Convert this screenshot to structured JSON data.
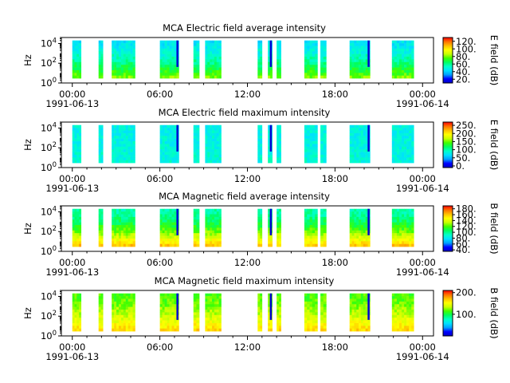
{
  "figure": {
    "background": "#ffffff",
    "colormap": [
      "#0000c8",
      "#0000ff",
      "#00a0ff",
      "#00e0ff",
      "#00ffc8",
      "#00ff60",
      "#40ff00",
      "#c8ff00",
      "#ffff00",
      "#ffc000",
      "#ff7000",
      "#ff0000"
    ]
  },
  "x_axis": {
    "range_hours": [
      -0.75,
      24.75
    ],
    "ticks": [
      {
        "t": 0,
        "label": "00:00",
        "date": "1991-06-13"
      },
      {
        "t": 6,
        "label": "06:00",
        "date": ""
      },
      {
        "t": 12,
        "label": "12:00",
        "date": ""
      },
      {
        "t": 18,
        "label": "18:00",
        "date": ""
      },
      {
        "t": 24,
        "label": "00:00",
        "date": "1991-06-14"
      }
    ],
    "minor_step_hours": 1
  },
  "chart_data": [
    {
      "type": "heatmap",
      "title": "MCA  Electric field average intensity",
      "ylabel": "Hz",
      "yscale": "log",
      "ylim": [
        1,
        40000
      ],
      "yticks": [
        {
          "v": 1,
          "base": "10",
          "exp": "0"
        },
        {
          "v": 100,
          "base": "10",
          "exp": "2"
        },
        {
          "v": 10000,
          "base": "10",
          "exp": "4"
        }
      ],
      "colorbar": {
        "label": "E field (dB)",
        "range": [
          10,
          130
        ],
        "ticks": [
          "20.",
          "40.",
          "60.",
          "80.",
          "100.",
          "120."
        ],
        "tick_values": [
          20,
          40,
          60,
          80,
          100,
          120
        ]
      },
      "data_segments_hours": [
        [
          0.0,
          0.6
        ],
        [
          1.8,
          2.1
        ],
        [
          2.7,
          4.3
        ],
        [
          6.0,
          7.3
        ],
        [
          8.3,
          8.7
        ],
        [
          9.1,
          10.2
        ],
        [
          12.7,
          13.0
        ],
        [
          13.4,
          13.7
        ],
        [
          14.0,
          14.3
        ],
        [
          15.9,
          16.8
        ],
        [
          17.0,
          17.4
        ],
        [
          19.0,
          20.4
        ],
        [
          21.9,
          23.4
        ]
      ],
      "intensity_low_freq": 80,
      "intensity_high_freq": 45
    },
    {
      "type": "heatmap",
      "title": "MCA  Electric field maximum intensity",
      "ylabel": "Hz",
      "yscale": "log",
      "ylim": [
        1,
        40000
      ],
      "yticks": [
        {
          "v": 1,
          "base": "10",
          "exp": "0"
        },
        {
          "v": 100,
          "base": "10",
          "exp": "2"
        },
        {
          "v": 10000,
          "base": "10",
          "exp": "4"
        }
      ],
      "colorbar": {
        "label": "E field (dB)",
        "range": [
          -10,
          270
        ],
        "ticks": [
          "0.",
          "50.",
          "100.",
          "150.",
          "200.",
          "250."
        ],
        "tick_values": [
          0,
          50,
          100,
          150,
          200,
          250
        ]
      },
      "data_segments_hours": [
        [
          0.0,
          0.6
        ],
        [
          1.8,
          2.1
        ],
        [
          2.7,
          4.3
        ],
        [
          6.0,
          7.3
        ],
        [
          8.3,
          8.7
        ],
        [
          9.1,
          10.2
        ],
        [
          12.7,
          13.0
        ],
        [
          13.4,
          13.7
        ],
        [
          14.0,
          14.3
        ],
        [
          15.9,
          16.8
        ],
        [
          17.0,
          17.4
        ],
        [
          19.0,
          20.4
        ],
        [
          21.9,
          23.4
        ]
      ],
      "intensity_low_freq": 85,
      "intensity_high_freq": 80
    },
    {
      "type": "heatmap",
      "title": "MCA  Magnetic field average intensity",
      "ylabel": "Hz",
      "yscale": "log",
      "ylim": [
        1,
        40000
      ],
      "yticks": [
        {
          "v": 1,
          "base": "10",
          "exp": "0"
        },
        {
          "v": 100,
          "base": "10",
          "exp": "2"
        },
        {
          "v": 10000,
          "base": "10",
          "exp": "4"
        }
      ],
      "colorbar": {
        "label": "B field (dB)",
        "range": [
          35,
          190
        ],
        "ticks": [
          "40.",
          "60.",
          "80.",
          "100.",
          "120.",
          "140.",
          "160.",
          "180."
        ],
        "tick_values": [
          40,
          60,
          80,
          100,
          120,
          140,
          160,
          180
        ]
      },
      "data_segments_hours": [
        [
          0.0,
          0.6
        ],
        [
          1.8,
          2.1
        ],
        [
          2.7,
          4.3
        ],
        [
          6.0,
          7.3
        ],
        [
          8.3,
          8.7
        ],
        [
          9.1,
          10.2
        ],
        [
          12.7,
          13.0
        ],
        [
          13.4,
          13.7
        ],
        [
          14.0,
          14.3
        ],
        [
          15.9,
          16.8
        ],
        [
          17.0,
          17.4
        ],
        [
          19.0,
          20.4
        ],
        [
          21.9,
          23.4
        ]
      ],
      "intensity_low_freq": 160,
      "intensity_high_freq": 95
    },
    {
      "type": "heatmap",
      "title": "MCA  Magnetic field maximum intensity",
      "ylabel": "Hz",
      "yscale": "log",
      "ylim": [
        1,
        40000
      ],
      "yticks": [
        {
          "v": 1,
          "base": "10",
          "exp": "0"
        },
        {
          "v": 100,
          "base": "10",
          "exp": "2"
        },
        {
          "v": 10000,
          "base": "10",
          "exp": "4"
        }
      ],
      "colorbar": {
        "label": "B field (dB)",
        "range": [
          0,
          210
        ],
        "ticks": [
          "100.",
          "200."
        ],
        "tick_values": [
          100,
          200
        ]
      },
      "data_segments_hours": [
        [
          0.0,
          0.6
        ],
        [
          1.8,
          2.1
        ],
        [
          2.7,
          4.3
        ],
        [
          6.0,
          7.3
        ],
        [
          8.3,
          8.7
        ],
        [
          9.1,
          10.2
        ],
        [
          12.7,
          13.0
        ],
        [
          13.4,
          13.7
        ],
        [
          14.0,
          14.3
        ],
        [
          15.9,
          16.8
        ],
        [
          17.0,
          17.4
        ],
        [
          19.0,
          20.4
        ],
        [
          21.9,
          23.4
        ]
      ],
      "intensity_low_freq": 165,
      "intensity_high_freq": 115
    }
  ]
}
